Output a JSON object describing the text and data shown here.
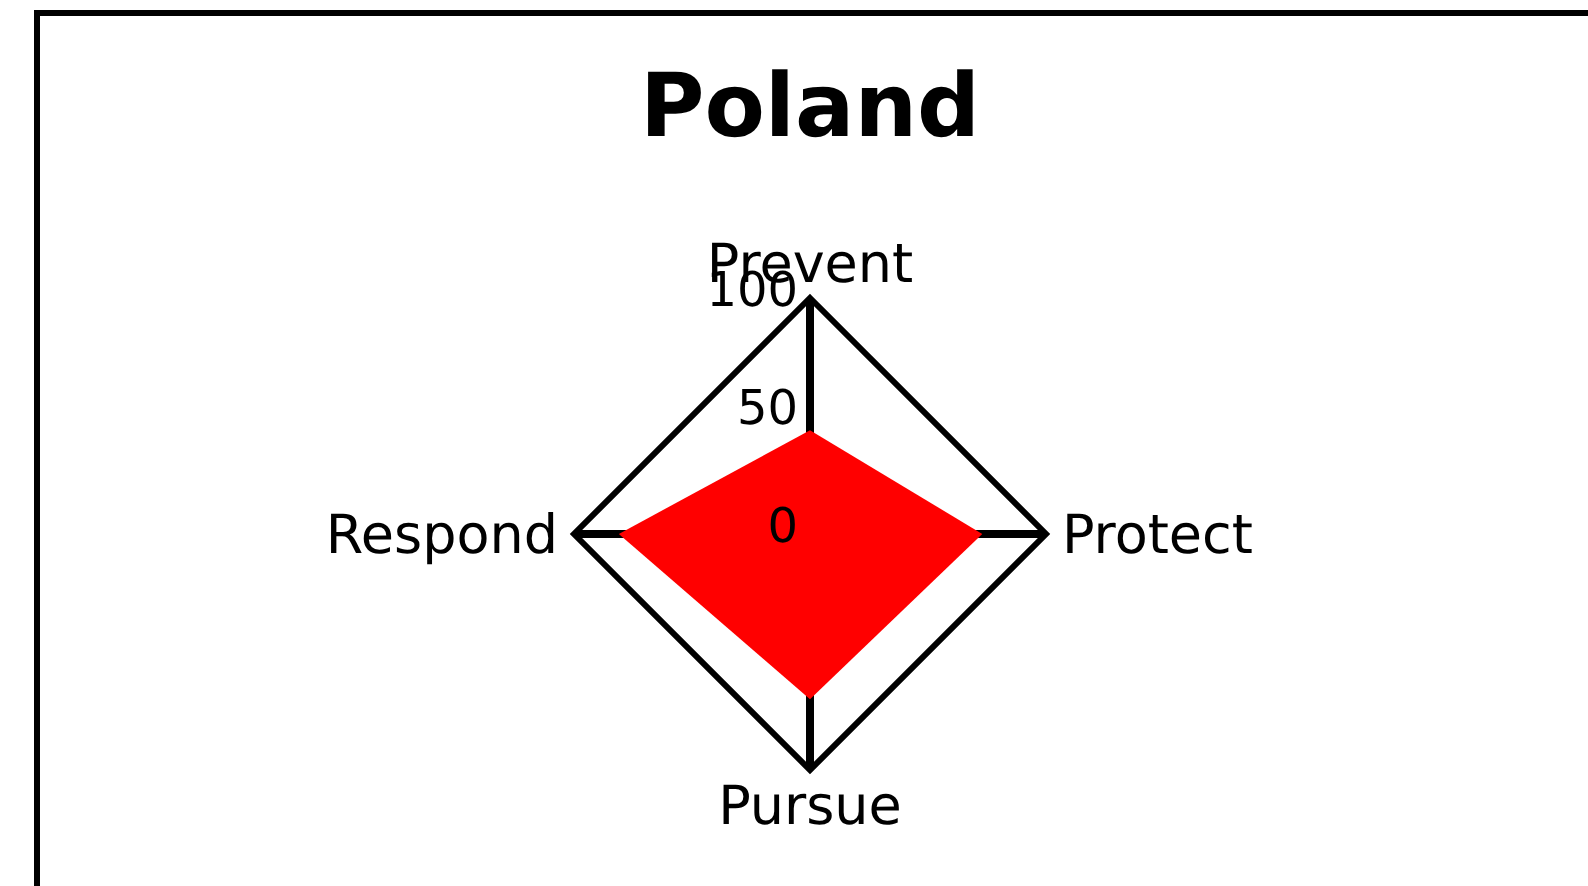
{
  "chart_data": {
    "type": "radar",
    "title": "Poland",
    "categories": [
      "Prevent",
      "Protect",
      "Pursue",
      "Respond"
    ],
    "series": [
      {
        "color": "#ff0000",
        "values": [
          44,
          73,
          70,
          81
        ]
      }
    ],
    "ylim": [
      0,
      100
    ],
    "yticks": [
      0,
      50,
      100
    ],
    "grid": true,
    "legend": false
  }
}
